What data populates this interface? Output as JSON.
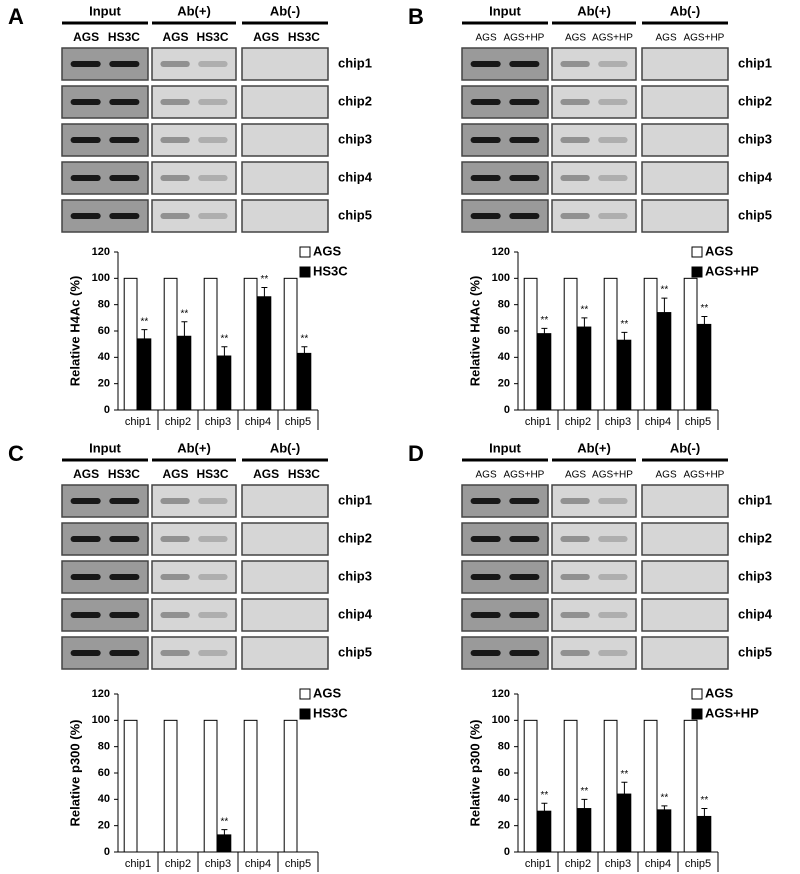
{
  "panels": [
    {
      "letter": "A",
      "gel": {
        "groups": [
          "Input",
          "Ab(+)",
          "Ab(-)"
        ],
        "lanes": [
          "AGS",
          "HS3C",
          "AGS",
          "HS3C",
          "AGS",
          "HS3C"
        ],
        "rows": [
          "chip1",
          "chip2",
          "chip3",
          "chip4",
          "chip5"
        ]
      }
    },
    {
      "letter": "B",
      "gel": {
        "groups": [
          "Input",
          "Ab(+)",
          "Ab(-)"
        ],
        "lanes": [
          "AGS",
          "AGS+HP",
          "AGS",
          "AGS+HP",
          "AGS",
          "AGS+HP"
        ],
        "rows": [
          "chip1",
          "chip2",
          "chip3",
          "chip4",
          "chip5"
        ]
      }
    },
    {
      "letter": "C",
      "gel": {
        "groups": [
          "Input",
          "Ab(+)",
          "Ab(-)"
        ],
        "lanes": [
          "AGS",
          "HS3C",
          "AGS",
          "HS3C",
          "AGS",
          "HS3C"
        ],
        "rows": [
          "chip1",
          "chip2",
          "chip3",
          "chip4",
          "chip5"
        ]
      }
    },
    {
      "letter": "D",
      "gel": {
        "groups": [
          "Input",
          "Ab(+)",
          "Ab(-)"
        ],
        "lanes": [
          "AGS",
          "AGS+HP",
          "AGS",
          "AGS+HP",
          "AGS",
          "AGS+HP"
        ],
        "rows": [
          "chip1",
          "chip2",
          "chip3",
          "chip4",
          "chip5"
        ]
      }
    }
  ],
  "chart_data": [
    {
      "type": "bar",
      "y_label": "Relative H4Ac (%)",
      "categories": [
        "chip1",
        "chip2",
        "chip3",
        "chip4",
        "chip5"
      ],
      "series": [
        {
          "name": "AGS",
          "color": "#ffffff",
          "values": [
            100,
            100,
            100,
            100,
            100
          ]
        },
        {
          "name": "HS3C",
          "color": "#000000",
          "values": [
            54,
            56,
            41,
            86,
            43
          ],
          "errors": [
            7,
            11,
            7,
            7,
            5
          ],
          "significance": [
            "**",
            "**",
            "**",
            "**",
            "**"
          ]
        }
      ],
      "ylim": [
        0,
        120
      ],
      "yticks": [
        0,
        20,
        40,
        60,
        80,
        100,
        120
      ]
    },
    {
      "type": "bar",
      "y_label": "Relative H4Ac (%)",
      "categories": [
        "chip1",
        "chip2",
        "chip3",
        "chip4",
        "chip5"
      ],
      "series": [
        {
          "name": "AGS",
          "color": "#ffffff",
          "values": [
            100,
            100,
            100,
            100,
            100
          ]
        },
        {
          "name": "AGS+HP",
          "color": "#000000",
          "values": [
            58,
            63,
            53,
            74,
            65
          ],
          "errors": [
            4,
            7,
            6,
            11,
            6
          ],
          "significance": [
            "**",
            "**",
            "**",
            "**",
            "**"
          ]
        }
      ],
      "ylim": [
        0,
        120
      ],
      "yticks": [
        0,
        20,
        40,
        60,
        80,
        100,
        120
      ]
    },
    {
      "type": "bar",
      "y_label": "Relative p300 (%)",
      "categories": [
        "chip1",
        "chip2",
        "chip3",
        "chip4",
        "chip5"
      ],
      "series": [
        {
          "name": "AGS",
          "color": "#ffffff",
          "values": [
            100,
            100,
            100,
            100,
            100
          ]
        },
        {
          "name": "HS3C",
          "color": "#000000",
          "values": [
            0,
            0,
            13,
            0,
            0
          ],
          "errors": [
            0,
            0,
            4,
            0,
            0
          ],
          "significance": [
            null,
            null,
            "**",
            null,
            null
          ]
        }
      ],
      "ylim": [
        0,
        120
      ],
      "yticks": [
        0,
        20,
        40,
        60,
        80,
        100,
        120
      ]
    },
    {
      "type": "bar",
      "y_label": "Relative p300 (%)",
      "categories": [
        "chip1",
        "chip2",
        "chip3",
        "chip4",
        "chip5"
      ],
      "series": [
        {
          "name": "AGS",
          "color": "#ffffff",
          "values": [
            100,
            100,
            100,
            100,
            100
          ]
        },
        {
          "name": "AGS+HP",
          "color": "#000000",
          "values": [
            31,
            33,
            44,
            32,
            27
          ],
          "errors": [
            6,
            7,
            9,
            3,
            6
          ],
          "significance": [
            "**",
            "**",
            "**",
            "**",
            "**"
          ]
        }
      ],
      "ylim": [
        0,
        120
      ],
      "yticks": [
        0,
        20,
        40,
        60,
        80,
        100,
        120
      ]
    }
  ]
}
